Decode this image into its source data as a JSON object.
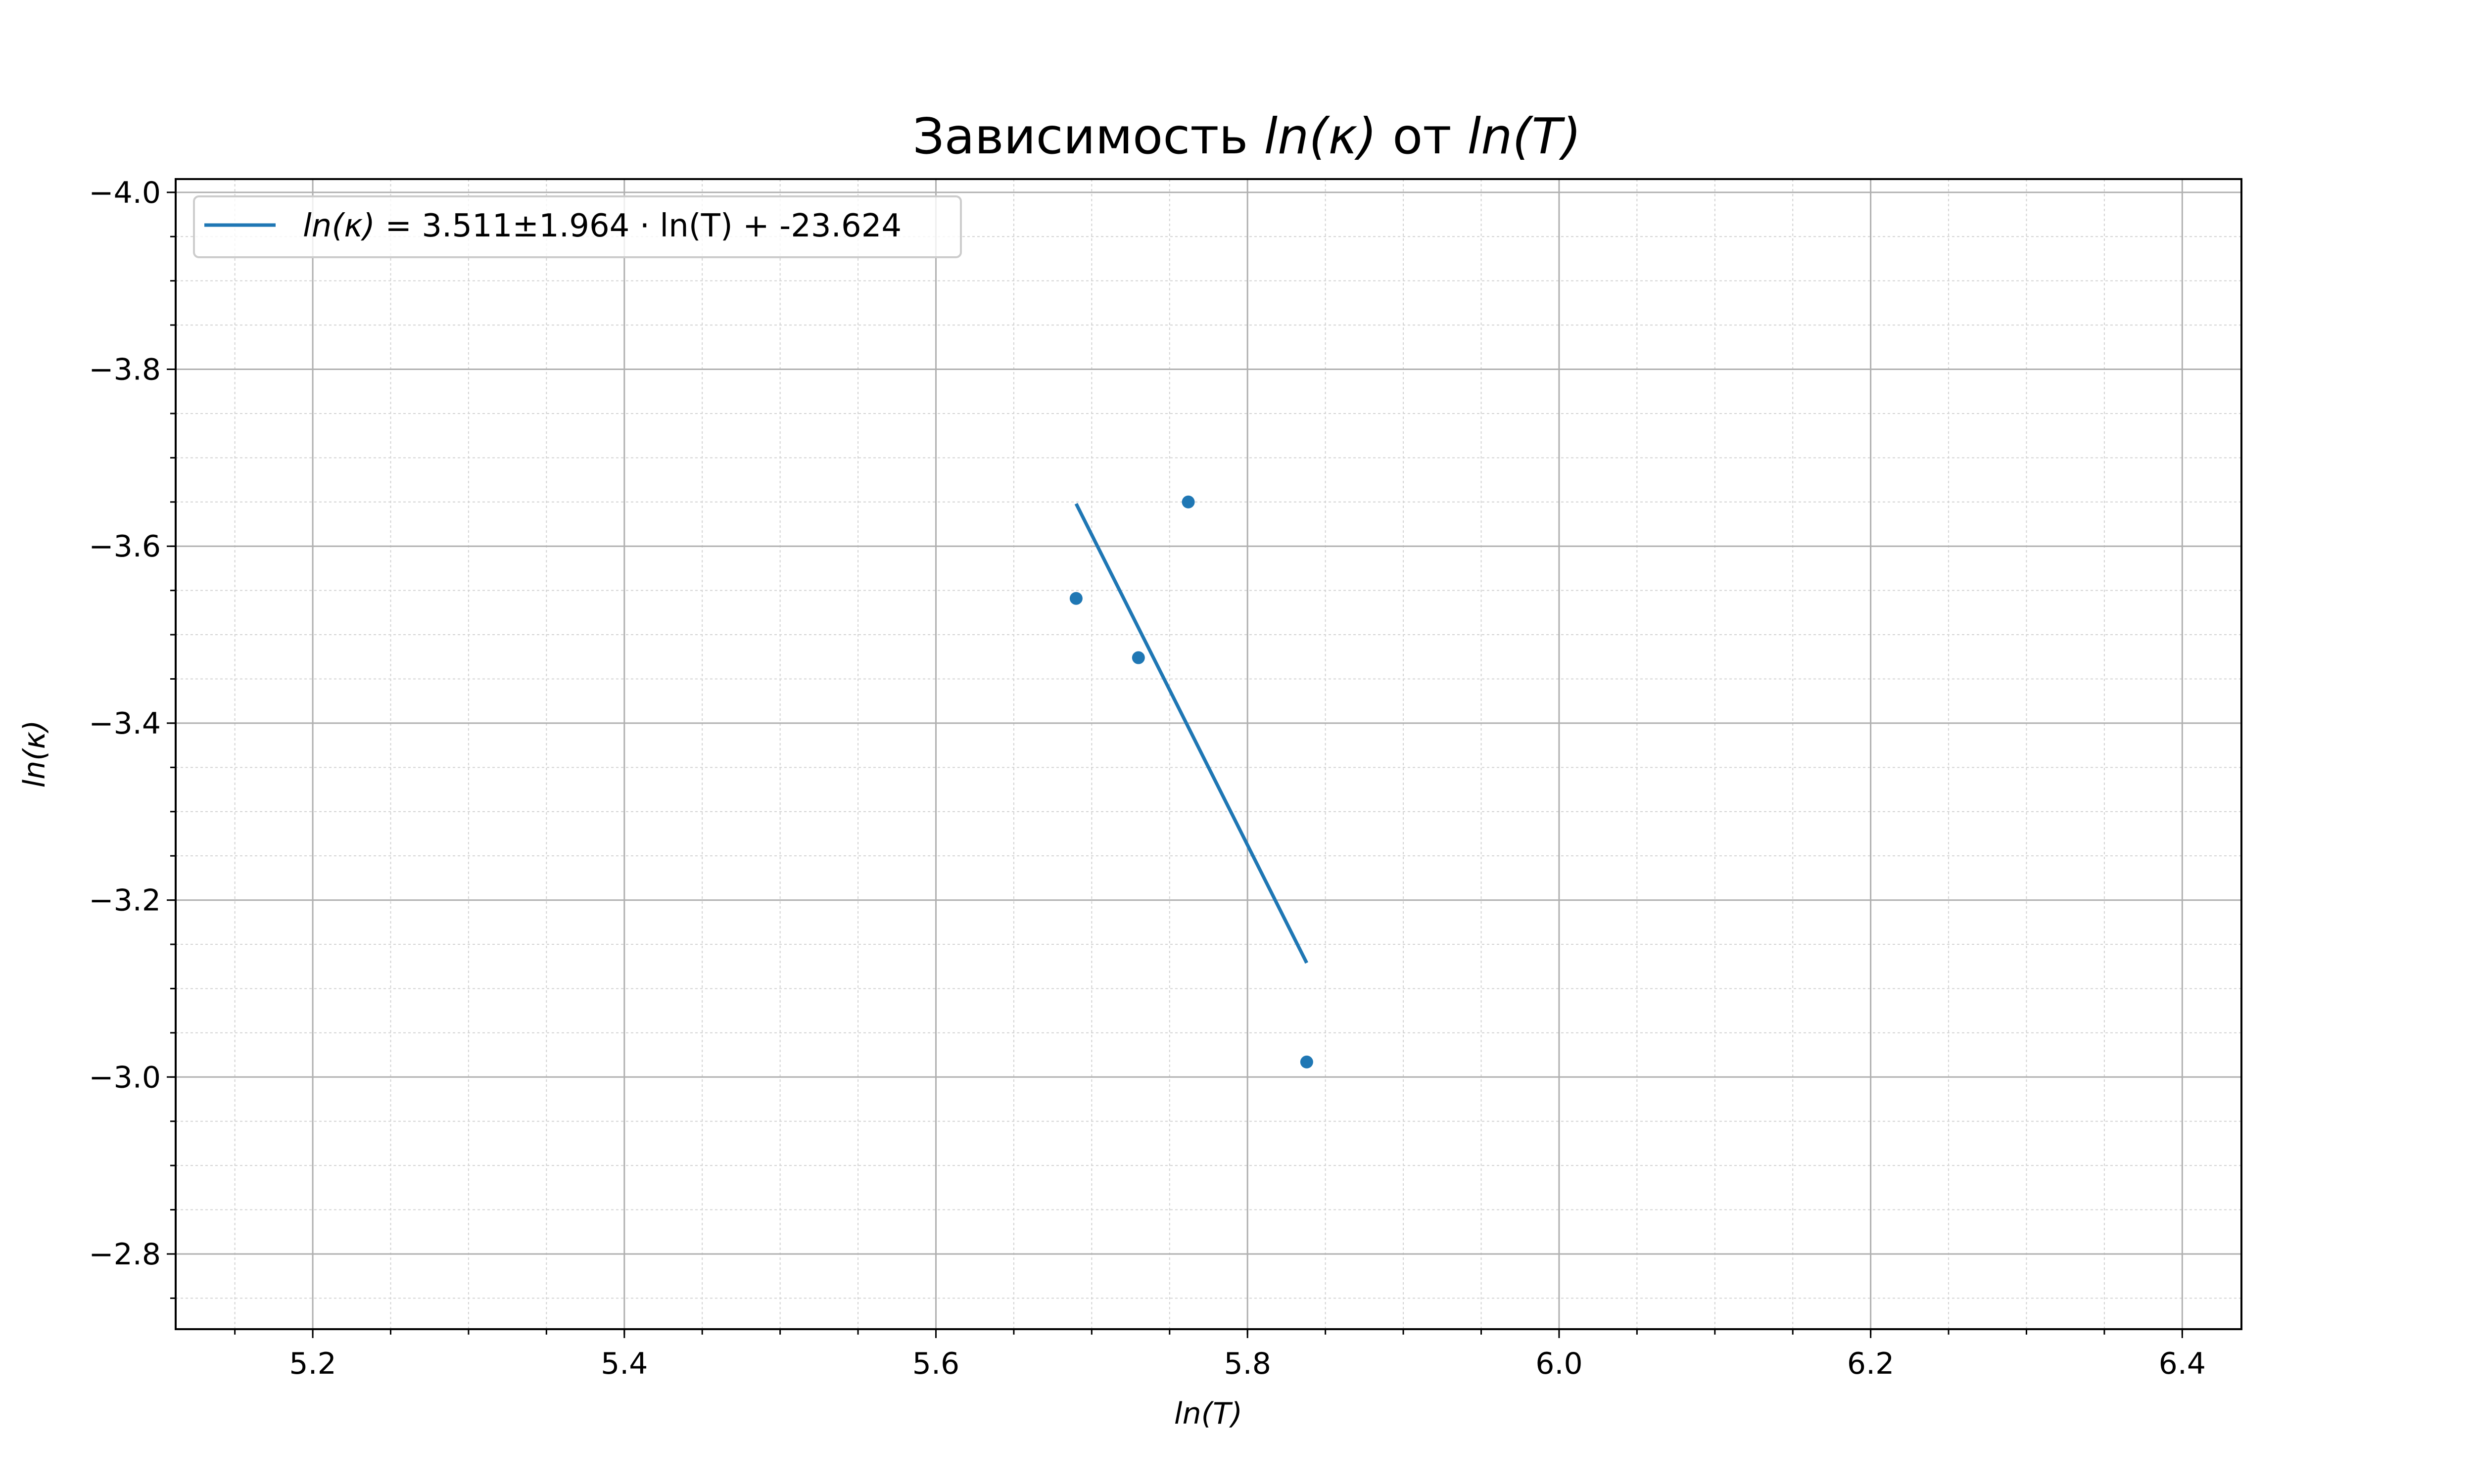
{
  "chart_data": {
    "type": "scatter",
    "title": "Зависимость ln(κ) от ln(T)",
    "xlabel": "ln(T)",
    "ylabel": "ln(κ)",
    "xlim": [
      5.112,
      6.438
    ],
    "ylim": [
      -2.715,
      -4.015
    ],
    "y_axis_inverted": true,
    "x_ticks": [
      5.2,
      5.4,
      5.6,
      5.8,
      6.0,
      6.2,
      6.4
    ],
    "x_tick_labels": [
      "5.2",
      "5.4",
      "5.6",
      "5.8",
      "6.0",
      "6.2",
      "6.4"
    ],
    "y_ticks": [
      -4.0,
      -3.8,
      -3.6,
      -3.4,
      -3.2,
      -3.0,
      -2.8
    ],
    "y_tick_labels": [
      "−4.0",
      "−3.8",
      "−3.6",
      "−3.4",
      "−3.2",
      "−3.0",
      "−2.8"
    ],
    "grid": {
      "major": true,
      "minor": true
    },
    "legend_position": "top-left",
    "legend": [
      "ln(κ) = 3.511±1.964 · ln(T) + -23.624"
    ],
    "series": [
      {
        "kind": "points",
        "x": [
          5.69,
          5.73,
          5.762,
          5.838
        ],
        "y": [
          -3.541,
          -3.474,
          -3.65,
          -3.017
        ],
        "color": "#1f77b4"
      },
      {
        "kind": "fit-line",
        "name": "ln(κ) = 3.511±1.964 · ln(T) + -23.624",
        "x": [
          5.69,
          5.838
        ],
        "y": [
          -3.648,
          -3.129
        ],
        "color": "#1f77b4"
      }
    ]
  }
}
